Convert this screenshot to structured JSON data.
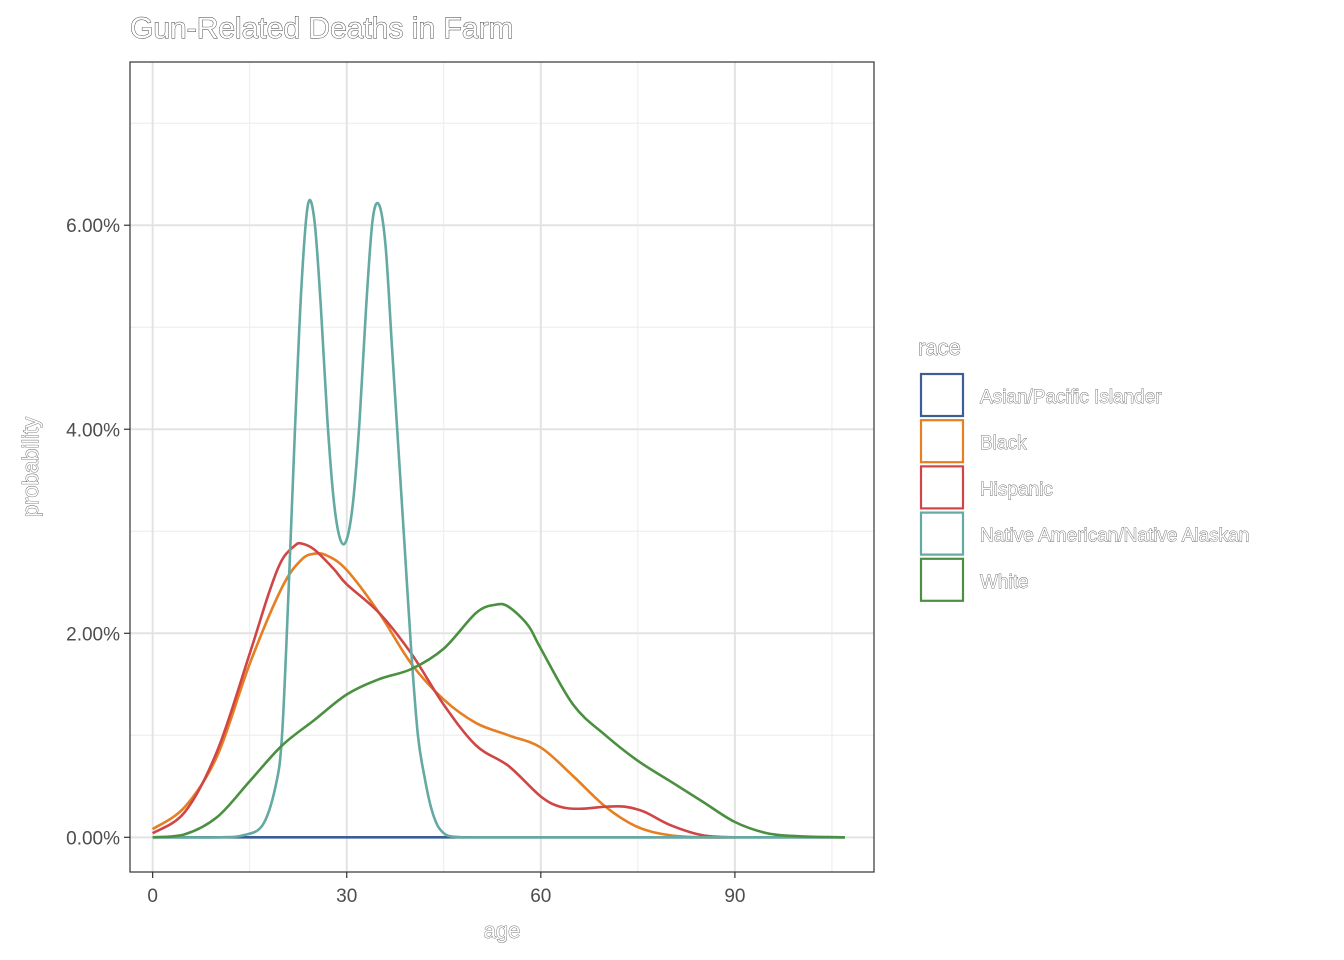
{
  "chart_data": {
    "type": "line",
    "title": "Gun-Related Deaths in Farm",
    "xlabel": "age",
    "ylabel": "probability",
    "xlim": [
      -3.5,
      111.5
    ],
    "ylim": [
      -0.0034,
      0.076
    ],
    "x_ticks": [
      {
        "value": 0,
        "label": "0"
      },
      {
        "value": 30,
        "label": "30"
      },
      {
        "value": 60,
        "label": "60"
      },
      {
        "value": 90,
        "label": "90"
      }
    ],
    "x_minor": [
      15,
      45,
      75,
      105
    ],
    "y_ticks": [
      {
        "value": 0,
        "label": "0.00%"
      },
      {
        "value": 0.02,
        "label": "2.00%"
      },
      {
        "value": 0.04,
        "label": "4.00%"
      },
      {
        "value": 0.06,
        "label": "6.00%"
      }
    ],
    "y_minor": [
      0.01,
      0.03,
      0.05,
      0.07
    ],
    "grid": true,
    "legend_title": "race",
    "legend_position": "right",
    "series": [
      {
        "name": "Asian/Pacific Islander",
        "color": "#3b5e96",
        "x": [
          0,
          107
        ],
        "y": [
          0,
          0
        ]
      },
      {
        "name": "Black",
        "color": "#e67e22",
        "x": [
          0,
          5,
          10,
          15,
          20,
          23,
          25,
          27,
          30,
          35,
          40,
          45,
          50,
          55,
          60,
          65,
          70,
          75,
          80,
          85,
          90
        ],
        "y": [
          0.0008,
          0.003,
          0.008,
          0.017,
          0.0245,
          0.0272,
          0.0278,
          0.0276,
          0.0262,
          0.022,
          0.017,
          0.0135,
          0.0112,
          0.01,
          0.0088,
          0.006,
          0.003,
          0.001,
          0.0002,
          0.0,
          0.0
        ]
      },
      {
        "name": "Hispanic",
        "color": "#d04545",
        "x": [
          0,
          5,
          10,
          15,
          18,
          20,
          22,
          23,
          25,
          28,
          30,
          35,
          40,
          45,
          50,
          55,
          60,
          63,
          66,
          70,
          73,
          76,
          80,
          85,
          90
        ],
        "y": [
          0.0004,
          0.0025,
          0.0085,
          0.018,
          0.024,
          0.0272,
          0.0286,
          0.0288,
          0.0282,
          0.0263,
          0.0248,
          0.022,
          0.018,
          0.013,
          0.009,
          0.007,
          0.004,
          0.003,
          0.0028,
          0.003,
          0.003,
          0.0025,
          0.0012,
          0.0002,
          0.0
        ]
      },
      {
        "name": "Native American/Native Alaskan",
        "color": "#64a9a2",
        "x": [
          0,
          10,
          14,
          17,
          19,
          20,
          21,
          22,
          23,
          24,
          25,
          26,
          27,
          28,
          29,
          30,
          31,
          32,
          33,
          34,
          35,
          36,
          37,
          38,
          39,
          40,
          41,
          42,
          43,
          44,
          45,
          46,
          48,
          50,
          60,
          107
        ],
        "y": [
          0.0,
          0.0,
          0.0002,
          0.0012,
          0.005,
          0.01,
          0.024,
          0.04,
          0.054,
          0.062,
          0.0605,
          0.052,
          0.041,
          0.033,
          0.0292,
          0.0292,
          0.033,
          0.041,
          0.052,
          0.0605,
          0.062,
          0.058,
          0.048,
          0.038,
          0.028,
          0.018,
          0.01,
          0.006,
          0.003,
          0.0012,
          0.0004,
          0.0001,
          0.0,
          0.0,
          0.0,
          0.0
        ]
      },
      {
        "name": "White",
        "color": "#4a9040",
        "x": [
          0,
          5,
          10,
          15,
          20,
          25,
          30,
          35,
          40,
          45,
          50,
          53,
          55,
          58,
          60,
          65,
          70,
          75,
          80,
          85,
          90,
          95,
          100,
          107
        ],
        "y": [
          0.0,
          0.0003,
          0.002,
          0.0055,
          0.009,
          0.0115,
          0.014,
          0.0155,
          0.0165,
          0.0185,
          0.022,
          0.0228,
          0.0226,
          0.0208,
          0.0185,
          0.013,
          0.01,
          0.0075,
          0.0055,
          0.0035,
          0.0015,
          0.0004,
          0.0001,
          0.0
        ]
      }
    ]
  }
}
